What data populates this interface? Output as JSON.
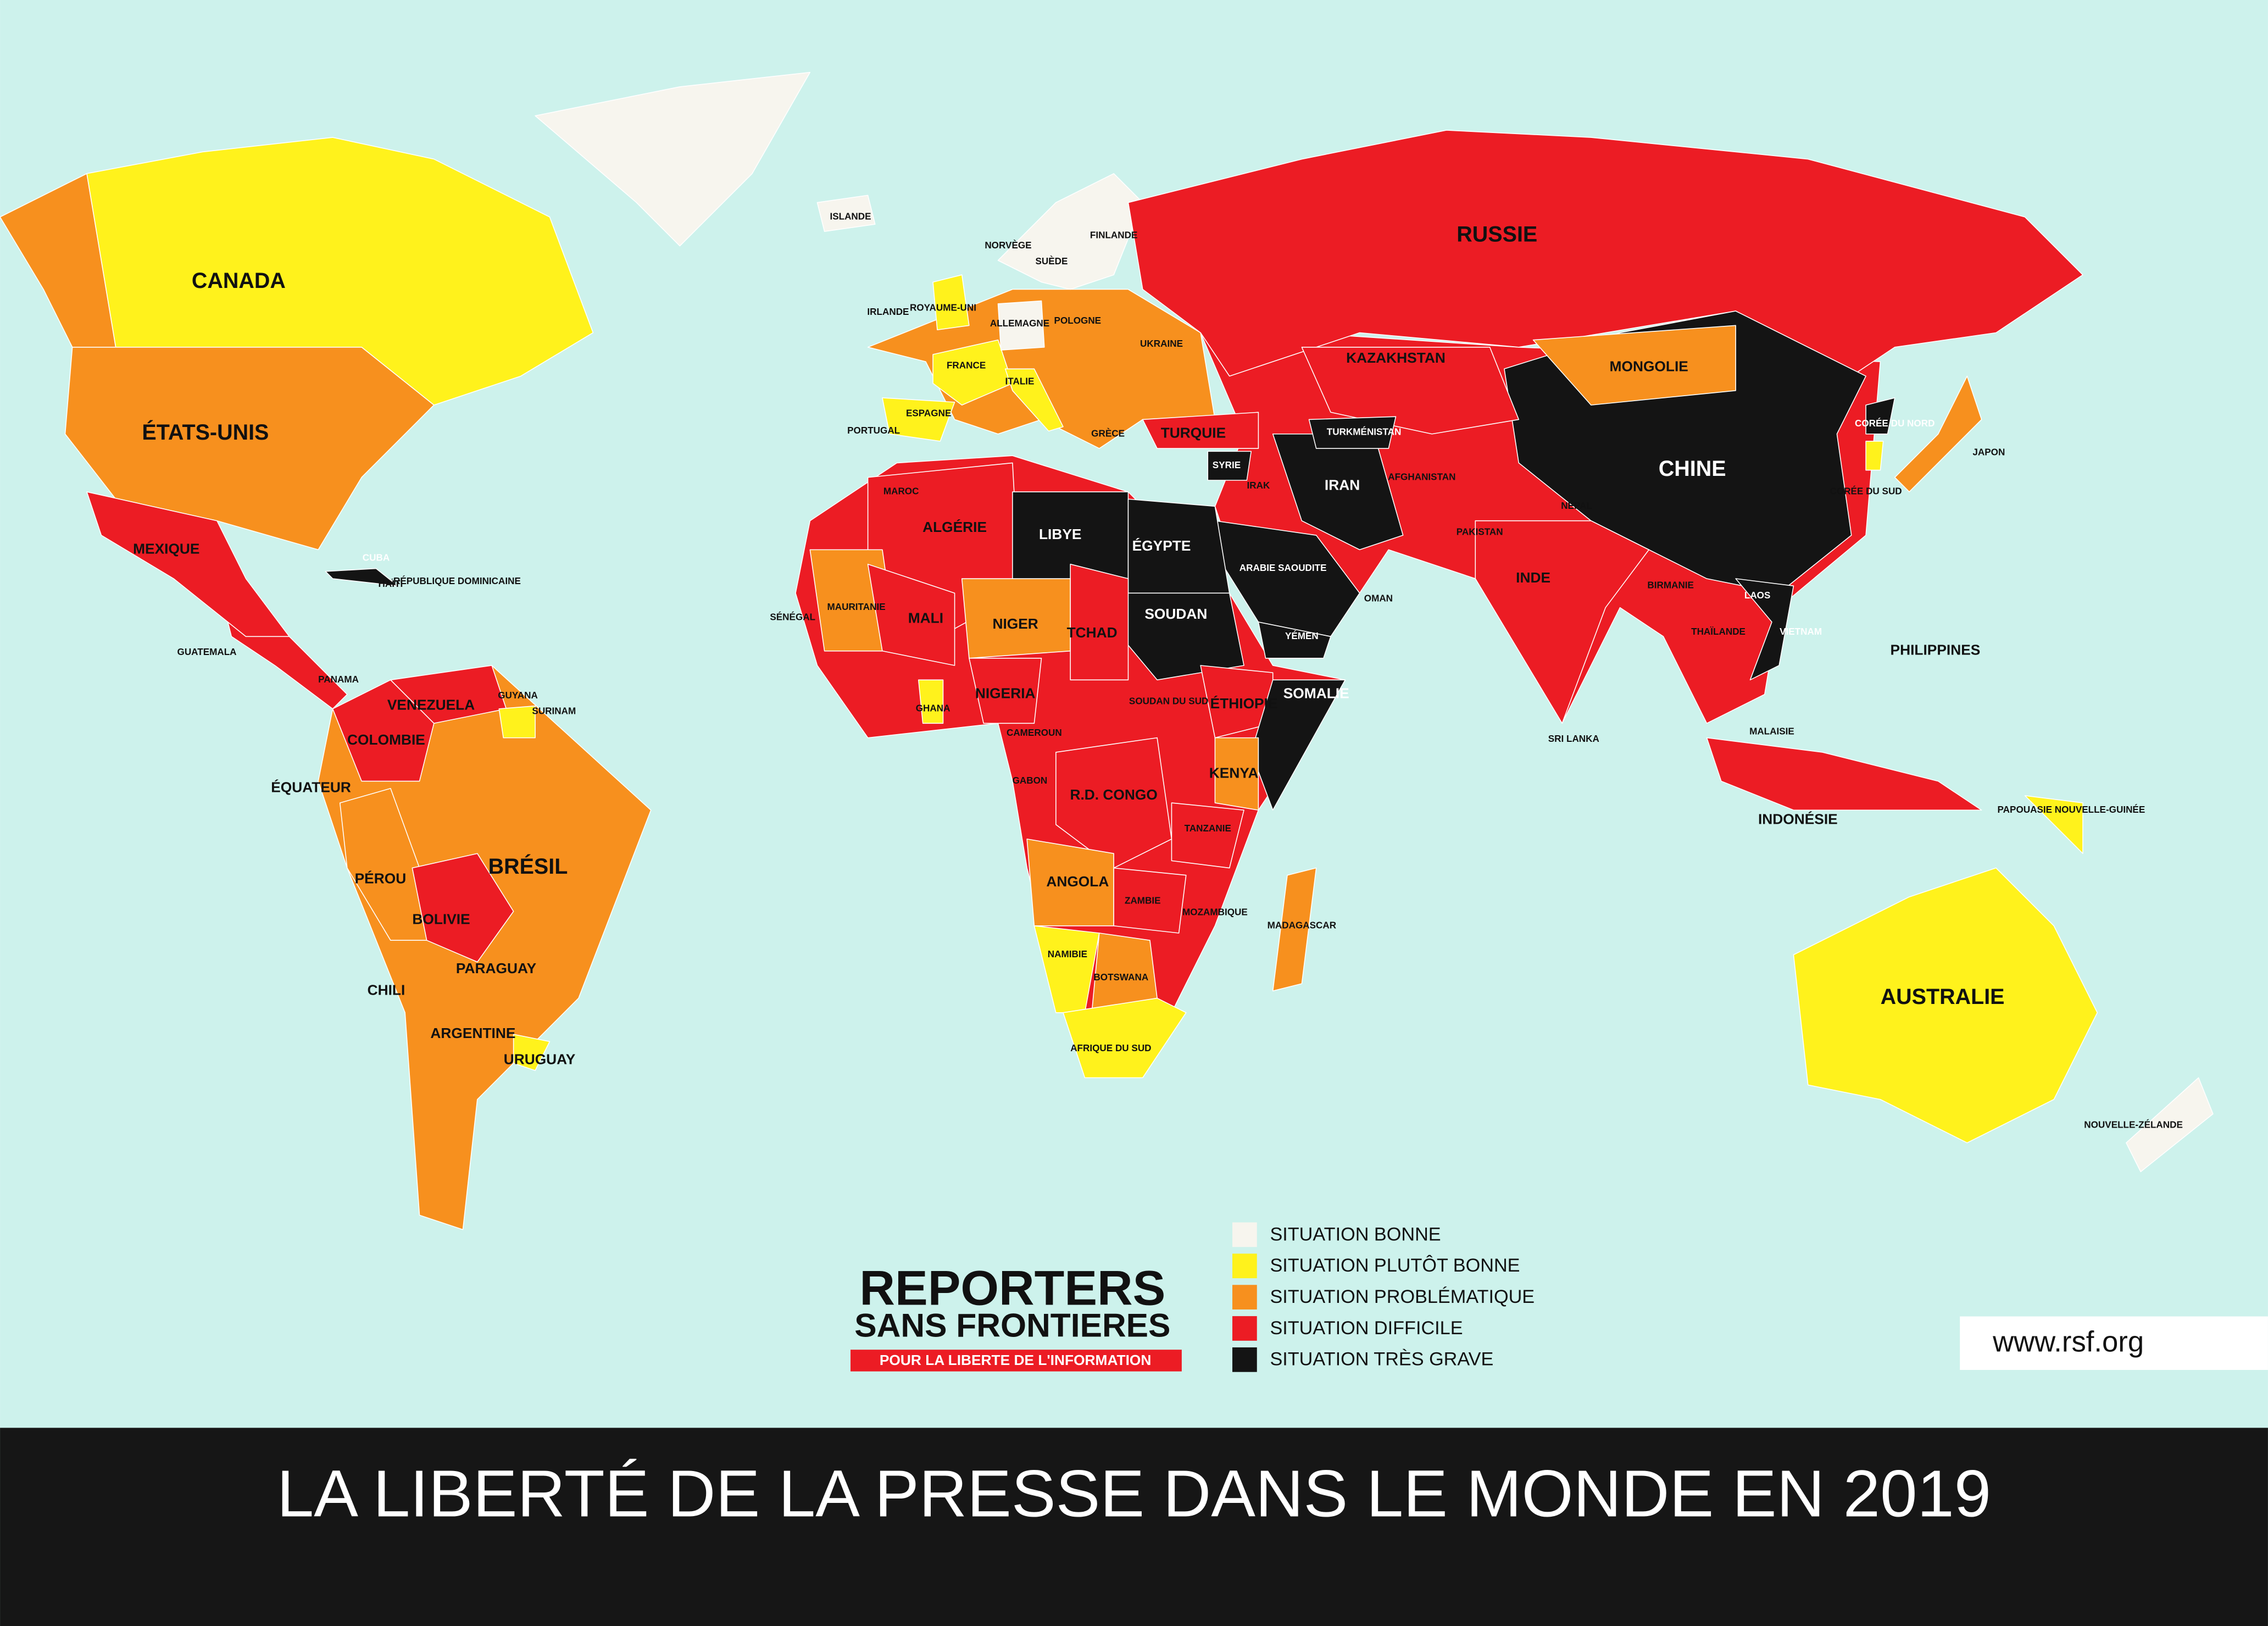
{
  "title": "LA LIBERTÉ DE LA PRESSE DANS LE MONDE EN 2019",
  "legend": [
    {
      "label": "SITUATION BONNE",
      "color": "#f7f5ee"
    },
    {
      "label": "SITUATION PLUTÔT BONNE",
      "color": "#fff21c"
    },
    {
      "label": "SITUATION PROBLÉMATIQUE",
      "color": "#f7901e"
    },
    {
      "label": "SITUATION DIFFICILE",
      "color": "#ec1c24"
    },
    {
      "label": "SITUATION TRÈS GRAVE",
      "color": "#141414"
    }
  ],
  "logo": {
    "line1": "REPORTERS",
    "line2": "SANS FRONTIERES",
    "tagline": "POUR LA LIBERTE DE L'INFORMATION"
  },
  "url": "www.rsf.org",
  "countries": [
    {
      "label": "CANADA",
      "level": 1
    },
    {
      "label": "ÉTATS-UNIS",
      "level": 2
    },
    {
      "label": "MEXIQUE",
      "level": 3
    },
    {
      "label": "ISLANDE",
      "level": 0
    },
    {
      "label": "CUBA",
      "level": 4
    },
    {
      "label": "HAÏTI",
      "level": 3
    },
    {
      "label": "RÉPUBLIQUE DOMINICAINE",
      "level": 2
    },
    {
      "label": "BRÉSIL",
      "level": 2
    },
    {
      "label": "COLOMBIE",
      "level": 3
    },
    {
      "label": "VENEZUELA",
      "level": 3
    },
    {
      "label": "PÉROU",
      "level": 2
    },
    {
      "label": "BOLIVIE",
      "level": 3
    },
    {
      "label": "ARGENTINE",
      "level": 2
    },
    {
      "label": "CHILI",
      "level": 2
    },
    {
      "label": "URUGUAY",
      "level": 1
    },
    {
      "label": "PARAGUAY",
      "level": 2
    },
    {
      "label": "ÉQUATEUR",
      "level": 2
    },
    {
      "label": "GUYANA",
      "level": 2
    },
    {
      "label": "SURINAM",
      "level": 1
    },
    {
      "label": "PANAMA",
      "level": 2
    },
    {
      "label": "GUATEMALA",
      "level": 3
    },
    {
      "label": "RUSSIE",
      "level": 3
    },
    {
      "label": "CHINE",
      "level": 4
    },
    {
      "label": "MONGOLIE",
      "level": 2
    },
    {
      "label": "KAZAKHSTAN",
      "level": 3
    },
    {
      "label": "INDE",
      "level": 3
    },
    {
      "label": "IRAN",
      "level": 4
    },
    {
      "label": "ARABIE SAOUDITE",
      "level": 4
    },
    {
      "label": "AFGHANISTAN",
      "level": 3
    },
    {
      "label": "PAKISTAN",
      "level": 3
    },
    {
      "label": "TURQUIE",
      "level": 3
    },
    {
      "label": "SYRIE",
      "level": 4
    },
    {
      "label": "IRAK",
      "level": 3
    },
    {
      "label": "YÉMEN",
      "level": 4
    },
    {
      "label": "OMAN",
      "level": 3
    },
    {
      "label": "TURKMÉNISTAN",
      "level": 4
    },
    {
      "label": "NÉPAL",
      "level": 2
    },
    {
      "label": "BIRMANIE",
      "level": 3
    },
    {
      "label": "THAÏLANDE",
      "level": 3
    },
    {
      "label": "VIETNAM",
      "level": 4
    },
    {
      "label": "LAOS",
      "level": 4
    },
    {
      "label": "CORÉE DU NORD",
      "level": 4
    },
    {
      "label": "CORÉE DU SUD",
      "level": 1
    },
    {
      "label": "JAPON",
      "level": 2
    },
    {
      "label": "PHILIPPINES",
      "level": 3
    },
    {
      "label": "MALAISIE",
      "level": 3
    },
    {
      "label": "INDONÉSIE",
      "level": 3
    },
    {
      "label": "PAPOUASIE NOUVELLE-GUINÉE",
      "level": 1
    },
    {
      "label": "AUSTRALIE",
      "level": 1
    },
    {
      "label": "NOUVELLE-ZÉLANDE",
      "level": 0
    },
    {
      "label": "NORVÈGE",
      "level": 0
    },
    {
      "label": "SUÈDE",
      "level": 0
    },
    {
      "label": "FINLANDE",
      "level": 0
    },
    {
      "label": "ROYAUME-UNI",
      "level": 1
    },
    {
      "label": "IRLANDE",
      "level": 1
    },
    {
      "label": "FRANCE",
      "level": 1
    },
    {
      "label": "ESPAGNE",
      "level": 1
    },
    {
      "label": "PORTUGAL",
      "level": 1
    },
    {
      "label": "ALLEMAGNE",
      "level": 0
    },
    {
      "label": "POLOGNE",
      "level": 2
    },
    {
      "label": "UKRAINE",
      "level": 2
    },
    {
      "label": "ITALIE",
      "level": 1
    },
    {
      "label": "GRÈCE",
      "level": 2
    },
    {
      "label": "MAROC",
      "level": 3
    },
    {
      "label": "ALGÉRIE",
      "level": 3
    },
    {
      "label": "LIBYE",
      "level": 4
    },
    {
      "label": "ÉGYPTE",
      "level": 4
    },
    {
      "label": "SOUDAN",
      "level": 4
    },
    {
      "label": "MAURITANIE",
      "level": 2
    },
    {
      "label": "MALI",
      "level": 3
    },
    {
      "label": "NIGER",
      "level": 2
    },
    {
      "label": "TCHAD",
      "level": 3
    },
    {
      "label": "NIGERIA",
      "level": 3
    },
    {
      "label": "ÉTHIOPIE",
      "level": 3
    },
    {
      "label": "SOMALIE",
      "level": 4
    },
    {
      "label": "KENYA",
      "level": 2
    },
    {
      "label": "R.D. CONGO",
      "level": 3
    },
    {
      "label": "TANZANIE",
      "level": 3
    },
    {
      "label": "ANGOLA",
      "level": 2
    },
    {
      "label": "ZAMBIE",
      "level": 3
    },
    {
      "label": "NAMIBIE",
      "level": 1
    },
    {
      "label": "BOTSWANA",
      "level": 2
    },
    {
      "label": "AFRIQUE DU SUD",
      "level": 1
    },
    {
      "label": "MADAGASCAR",
      "level": 2
    },
    {
      "label": "MOZAMBIQUE",
      "level": 3
    },
    {
      "label": "SOUDAN DU SUD",
      "level": 3
    },
    {
      "label": "SÉNÉGAL",
      "level": 2
    },
    {
      "label": "GHANA",
      "level": 1
    },
    {
      "label": "CAMEROUN",
      "level": 3
    },
    {
      "label": "GABON",
      "level": 3
    },
    {
      "label": "SRI LANKA",
      "level": 2
    }
  ]
}
